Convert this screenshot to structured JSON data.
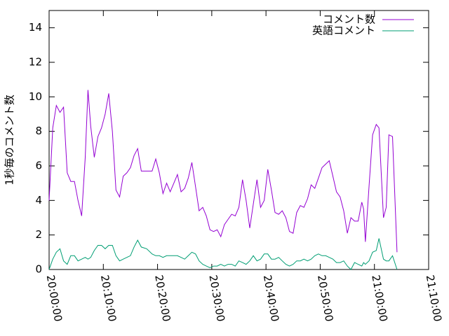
{
  "chart_data": {
    "type": "line",
    "y_label": "1秒毎のコメント数",
    "x": [
      "20:00:00",
      "20:00:40",
      "20:01:20",
      "20:02:00",
      "20:02:40",
      "20:03:20",
      "20:04:00",
      "20:04:40",
      "20:05:20",
      "20:06:00",
      "20:06:40",
      "20:07:10",
      "20:07:40",
      "20:08:20",
      "20:09:00",
      "20:09:40",
      "20:10:20",
      "20:11:00",
      "20:11:40",
      "20:12:20",
      "20:13:00",
      "20:13:40",
      "20:14:20",
      "20:15:00",
      "20:15:40",
      "20:16:20",
      "20:17:00",
      "20:18:00",
      "20:19:00",
      "20:19:40",
      "20:20:20",
      "20:21:00",
      "20:21:40",
      "20:22:20",
      "20:23:00",
      "20:23:40",
      "20:24:20",
      "20:25:00",
      "20:25:40",
      "20:26:20",
      "20:27:00",
      "20:27:40",
      "20:28:20",
      "20:29:00",
      "20:29:40",
      "20:30:20",
      "20:31:00",
      "20:31:40",
      "20:32:20",
      "20:33:00",
      "20:33:40",
      "20:34:20",
      "20:35:00",
      "20:35:40",
      "20:36:20",
      "20:37:00",
      "20:37:40",
      "20:38:20",
      "20:39:00",
      "20:39:40",
      "20:40:20",
      "20:41:00",
      "20:41:40",
      "20:42:20",
      "20:43:00",
      "20:43:40",
      "20:44:20",
      "20:45:00",
      "20:45:40",
      "20:46:20",
      "20:47:00",
      "20:47:40",
      "20:48:20",
      "20:49:00",
      "20:49:40",
      "20:50:20",
      "20:51:00",
      "20:51:40",
      "20:52:20",
      "20:53:00",
      "20:53:40",
      "20:54:20",
      "20:55:00",
      "20:55:40",
      "20:56:20",
      "20:57:00",
      "20:57:40",
      "20:58:00",
      "20:58:20",
      "20:59:00",
      "20:59:40",
      "21:00:20",
      "21:00:50",
      "21:01:40",
      "21:02:10",
      "21:02:40",
      "21:03:20",
      "21:04:10"
    ],
    "series": [
      {
        "name": "コメント数",
        "color": "#9400d3",
        "values": [
          4.0,
          8.2,
          9.5,
          9.1,
          9.4,
          5.6,
          5.1,
          5.1,
          4.0,
          3.1,
          6.5,
          10.4,
          8.3,
          6.5,
          7.7,
          8.2,
          9.0,
          10.2,
          8.0,
          4.6,
          4.2,
          5.4,
          5.6,
          5.9,
          6.6,
          7.0,
          5.7,
          5.7,
          5.7,
          6.4,
          5.6,
          4.4,
          5.0,
          4.5,
          5.0,
          5.5,
          4.5,
          4.7,
          5.3,
          6.2,
          4.8,
          3.4,
          3.6,
          3.1,
          2.3,
          2.2,
          2.3,
          1.9,
          2.6,
          2.9,
          3.2,
          3.1,
          3.6,
          5.2,
          4.0,
          2.4,
          3.8,
          5.2,
          3.6,
          4.0,
          5.8,
          4.6,
          3.3,
          3.2,
          3.4,
          3.0,
          2.2,
          2.1,
          3.3,
          3.7,
          3.6,
          4.1,
          4.9,
          4.7,
          5.3,
          5.9,
          6.1,
          6.3,
          5.4,
          4.5,
          4.2,
          3.4,
          2.1,
          3.0,
          2.8,
          2.8,
          3.9,
          3.5,
          1.6,
          4.8,
          7.8,
          8.4,
          8.2,
          3.0,
          3.6,
          7.8,
          7.7,
          1.0
        ]
      },
      {
        "name": "英語コメント",
        "color": "#009e73",
        "values": [
          0.0,
          0.6,
          1.0,
          1.2,
          0.5,
          0.3,
          0.8,
          0.8,
          0.5,
          0.6,
          0.7,
          0.6,
          0.7,
          1.1,
          1.4,
          1.4,
          1.2,
          1.4,
          1.4,
          0.8,
          0.5,
          0.6,
          0.7,
          0.8,
          1.3,
          1.7,
          1.3,
          1.2,
          0.9,
          0.8,
          0.8,
          0.7,
          0.8,
          0.8,
          0.8,
          0.8,
          0.7,
          0.6,
          0.8,
          1.0,
          0.9,
          0.5,
          0.3,
          0.2,
          0.1,
          0.2,
          0.2,
          0.3,
          0.2,
          0.3,
          0.3,
          0.2,
          0.5,
          0.4,
          0.3,
          0.5,
          0.8,
          0.5,
          0.6,
          0.9,
          0.9,
          0.6,
          0.6,
          0.7,
          0.5,
          0.3,
          0.2,
          0.3,
          0.5,
          0.5,
          0.6,
          0.5,
          0.6,
          0.8,
          0.9,
          0.8,
          0.8,
          0.7,
          0.6,
          0.4,
          0.4,
          0.5,
          0.2,
          0.0,
          0.4,
          0.3,
          0.2,
          0.4,
          0.3,
          0.5,
          1.0,
          1.1,
          1.8,
          0.6,
          0.5,
          0.5,
          0.8,
          0.0
        ]
      }
    ],
    "xlim": [
      "20:00:00",
      "21:10:00"
    ],
    "xticks": [
      "20:00:00",
      "20:10:00",
      "20:20:00",
      "20:30:00",
      "20:40:00",
      "20:50:00",
      "21:00:00",
      "21:10:00"
    ],
    "ylim": [
      0,
      15
    ],
    "yticks": [
      0,
      2,
      4,
      6,
      8,
      10,
      12,
      14
    ],
    "legend": "top-right"
  }
}
